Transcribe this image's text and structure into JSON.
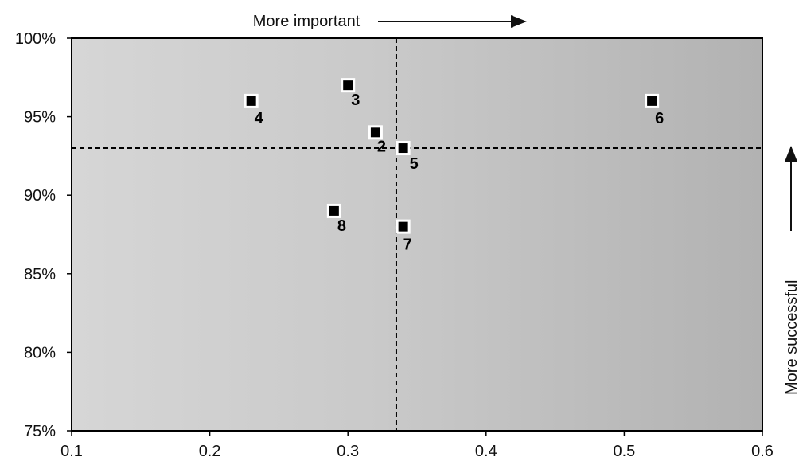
{
  "chart_data": {
    "type": "scatter",
    "title": "",
    "xlabel": "",
    "ylabel": "",
    "xlim": [
      0.1,
      0.6
    ],
    "ylim": [
      75,
      100
    ],
    "x_ticks": [
      "0.1",
      "0.2",
      "0.3",
      "0.4",
      "0.5",
      "0.6"
    ],
    "y_ticks": [
      "75%",
      "80%",
      "85%",
      "90%",
      "95%",
      "100%"
    ],
    "points": [
      {
        "label": "2",
        "x": 0.32,
        "y": 94
      },
      {
        "label": "3",
        "x": 0.3,
        "y": 97
      },
      {
        "label": "4",
        "x": 0.23,
        "y": 96
      },
      {
        "label": "5",
        "x": 0.34,
        "y": 93
      },
      {
        "label": "6",
        "x": 0.52,
        "y": 96
      },
      {
        "label": "7",
        "x": 0.34,
        "y": 88
      },
      {
        "label": "8",
        "x": 0.29,
        "y": 89
      }
    ],
    "reference_lines": {
      "x": 0.335,
      "y": 93
    },
    "annotations": {
      "x_direction": "More important",
      "y_direction": "More successful"
    },
    "background": "horizontal gradient, light gray to darker gray",
    "colors": {
      "marker": "#000000",
      "marker_outline": "#ffffff",
      "plot_bg_start": "#d6d6d6",
      "plot_bg_end": "#b2b2b2"
    }
  }
}
